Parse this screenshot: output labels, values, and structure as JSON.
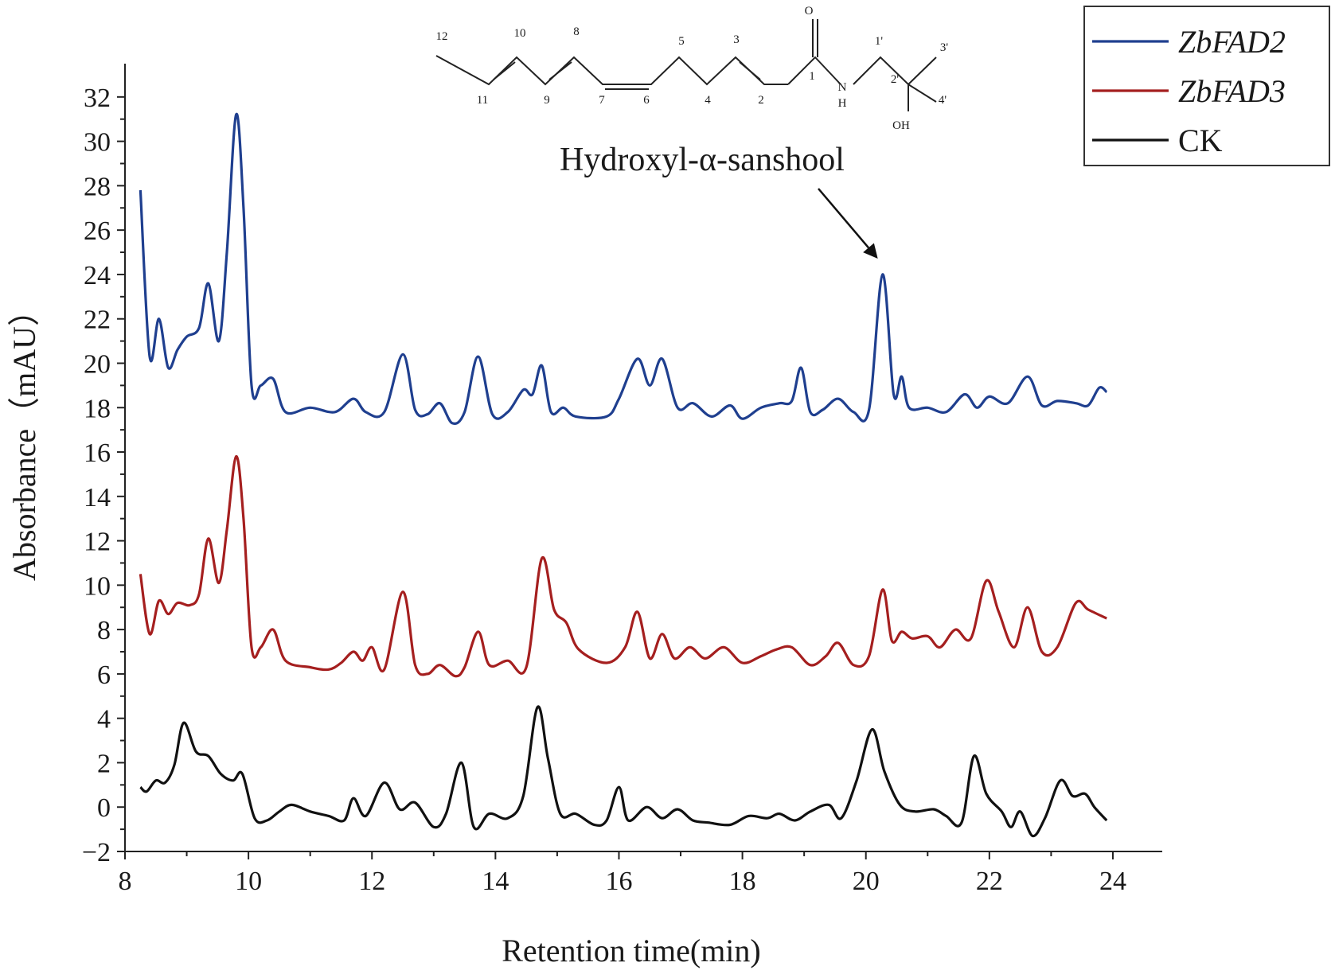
{
  "chart_data": {
    "type": "line",
    "title": "",
    "xlabel": "Retention time(min)",
    "ylabel": "Absorbance（mAU）",
    "xlim": [
      8,
      24.8
    ],
    "ylim": [
      -2,
      33.5
    ],
    "xticks": [
      8,
      10,
      12,
      14,
      16,
      18,
      20,
      22,
      24
    ],
    "yticks": [
      -2,
      0,
      2,
      4,
      6,
      8,
      10,
      12,
      14,
      16,
      18,
      20,
      22,
      24,
      26,
      28,
      30,
      32
    ],
    "grid": false,
    "legend": {
      "placement": "top-right"
    },
    "series": [
      {
        "name": "ZbFAD2",
        "italic": true,
        "color": "#1f3f8f",
        "points": [
          [
            8.25,
            27.8
          ],
          [
            8.4,
            20.3
          ],
          [
            8.55,
            22.0
          ],
          [
            8.7,
            19.8
          ],
          [
            8.85,
            20.6
          ],
          [
            9.0,
            21.2
          ],
          [
            9.2,
            21.6
          ],
          [
            9.35,
            23.6
          ],
          [
            9.52,
            21.0
          ],
          [
            9.65,
            25.0
          ],
          [
            9.8,
            31.2
          ],
          [
            9.92,
            27.0
          ],
          [
            10.05,
            19.0
          ],
          [
            10.2,
            19.0
          ],
          [
            10.4,
            19.3
          ],
          [
            10.6,
            17.8
          ],
          [
            11.0,
            18.0
          ],
          [
            11.4,
            17.8
          ],
          [
            11.7,
            18.4
          ],
          [
            11.9,
            17.8
          ],
          [
            12.2,
            17.8
          ],
          [
            12.5,
            20.4
          ],
          [
            12.7,
            17.9
          ],
          [
            12.9,
            17.7
          ],
          [
            13.1,
            18.2
          ],
          [
            13.3,
            17.3
          ],
          [
            13.5,
            17.8
          ],
          [
            13.72,
            20.3
          ],
          [
            13.95,
            17.7
          ],
          [
            14.2,
            17.8
          ],
          [
            14.45,
            18.8
          ],
          [
            14.6,
            18.6
          ],
          [
            14.75,
            19.9
          ],
          [
            14.9,
            17.8
          ],
          [
            15.1,
            18.0
          ],
          [
            15.3,
            17.6
          ],
          [
            15.8,
            17.6
          ],
          [
            16.0,
            18.4
          ],
          [
            16.3,
            20.2
          ],
          [
            16.5,
            19.0
          ],
          [
            16.7,
            20.2
          ],
          [
            16.95,
            18.0
          ],
          [
            17.2,
            18.2
          ],
          [
            17.5,
            17.6
          ],
          [
            17.8,
            18.1
          ],
          [
            18.0,
            17.5
          ],
          [
            18.3,
            18.0
          ],
          [
            18.6,
            18.2
          ],
          [
            18.8,
            18.3
          ],
          [
            18.95,
            19.8
          ],
          [
            19.1,
            17.8
          ],
          [
            19.3,
            17.9
          ],
          [
            19.55,
            18.4
          ],
          [
            19.8,
            17.8
          ],
          [
            20.05,
            17.9
          ],
          [
            20.27,
            24.0
          ],
          [
            20.45,
            18.6
          ],
          [
            20.58,
            19.4
          ],
          [
            20.7,
            18.0
          ],
          [
            21.0,
            18.0
          ],
          [
            21.3,
            17.8
          ],
          [
            21.6,
            18.6
          ],
          [
            21.8,
            18.0
          ],
          [
            22.0,
            18.5
          ],
          [
            22.3,
            18.2
          ],
          [
            22.62,
            19.4
          ],
          [
            22.85,
            18.1
          ],
          [
            23.1,
            18.3
          ],
          [
            23.4,
            18.2
          ],
          [
            23.6,
            18.1
          ],
          [
            23.78,
            18.9
          ],
          [
            23.9,
            18.7
          ]
        ]
      },
      {
        "name": "ZbFAD3",
        "italic": true,
        "color": "#a51f1f",
        "points": [
          [
            8.25,
            10.5
          ],
          [
            8.4,
            7.8
          ],
          [
            8.55,
            9.3
          ],
          [
            8.7,
            8.7
          ],
          [
            8.85,
            9.2
          ],
          [
            9.05,
            9.1
          ],
          [
            9.2,
            9.6
          ],
          [
            9.35,
            12.1
          ],
          [
            9.52,
            10.1
          ],
          [
            9.65,
            12.5
          ],
          [
            9.8,
            15.8
          ],
          [
            9.92,
            13.0
          ],
          [
            10.05,
            7.2
          ],
          [
            10.2,
            7.2
          ],
          [
            10.4,
            8.0
          ],
          [
            10.6,
            6.6
          ],
          [
            11.0,
            6.3
          ],
          [
            11.3,
            6.2
          ],
          [
            11.5,
            6.5
          ],
          [
            11.7,
            7.0
          ],
          [
            11.85,
            6.6
          ],
          [
            12.0,
            7.2
          ],
          [
            12.2,
            6.2
          ],
          [
            12.5,
            9.7
          ],
          [
            12.7,
            6.4
          ],
          [
            12.9,
            6.0
          ],
          [
            13.1,
            6.4
          ],
          [
            13.35,
            5.9
          ],
          [
            13.5,
            6.3
          ],
          [
            13.72,
            7.9
          ],
          [
            13.9,
            6.4
          ],
          [
            14.2,
            6.6
          ],
          [
            14.5,
            6.3
          ],
          [
            14.75,
            11.2
          ],
          [
            14.95,
            8.9
          ],
          [
            15.15,
            8.3
          ],
          [
            15.35,
            7.1
          ],
          [
            15.8,
            6.5
          ],
          [
            16.1,
            7.2
          ],
          [
            16.3,
            8.8
          ],
          [
            16.5,
            6.7
          ],
          [
            16.7,
            7.8
          ],
          [
            16.9,
            6.7
          ],
          [
            17.15,
            7.2
          ],
          [
            17.4,
            6.7
          ],
          [
            17.7,
            7.2
          ],
          [
            18.0,
            6.5
          ],
          [
            18.3,
            6.8
          ],
          [
            18.55,
            7.1
          ],
          [
            18.8,
            7.2
          ],
          [
            19.1,
            6.4
          ],
          [
            19.35,
            6.8
          ],
          [
            19.55,
            7.4
          ],
          [
            19.8,
            6.4
          ],
          [
            20.05,
            6.8
          ],
          [
            20.27,
            9.8
          ],
          [
            20.42,
            7.5
          ],
          [
            20.58,
            7.9
          ],
          [
            20.75,
            7.6
          ],
          [
            21.0,
            7.7
          ],
          [
            21.2,
            7.2
          ],
          [
            21.45,
            8.0
          ],
          [
            21.7,
            7.6
          ],
          [
            21.95,
            10.2
          ],
          [
            22.15,
            8.8
          ],
          [
            22.4,
            7.2
          ],
          [
            22.62,
            9.0
          ],
          [
            22.85,
            7.0
          ],
          [
            23.1,
            7.2
          ],
          [
            23.4,
            9.2
          ],
          [
            23.6,
            8.9
          ],
          [
            23.9,
            8.5
          ]
        ]
      },
      {
        "name": "CK",
        "italic": false,
        "color": "#111111",
        "points": [
          [
            8.25,
            0.9
          ],
          [
            8.35,
            0.7
          ],
          [
            8.5,
            1.2
          ],
          [
            8.65,
            1.1
          ],
          [
            8.8,
            1.9
          ],
          [
            8.95,
            3.8
          ],
          [
            9.15,
            2.5
          ],
          [
            9.35,
            2.3
          ],
          [
            9.55,
            1.5
          ],
          [
            9.75,
            1.2
          ],
          [
            9.9,
            1.5
          ],
          [
            10.1,
            -0.5
          ],
          [
            10.3,
            -0.6
          ],
          [
            10.5,
            -0.2
          ],
          [
            10.7,
            0.1
          ],
          [
            11.0,
            -0.2
          ],
          [
            11.3,
            -0.4
          ],
          [
            11.55,
            -0.6
          ],
          [
            11.7,
            0.4
          ],
          [
            11.9,
            -0.4
          ],
          [
            12.2,
            1.1
          ],
          [
            12.45,
            -0.1
          ],
          [
            12.7,
            0.2
          ],
          [
            13.0,
            -0.9
          ],
          [
            13.2,
            -0.3
          ],
          [
            13.45,
            2.0
          ],
          [
            13.65,
            -0.9
          ],
          [
            13.9,
            -0.3
          ],
          [
            14.2,
            -0.5
          ],
          [
            14.45,
            0.5
          ],
          [
            14.68,
            4.5
          ],
          [
            14.85,
            2.2
          ],
          [
            15.05,
            -0.3
          ],
          [
            15.3,
            -0.3
          ],
          [
            15.6,
            -0.8
          ],
          [
            15.8,
            -0.6
          ],
          [
            16.0,
            0.9
          ],
          [
            16.15,
            -0.6
          ],
          [
            16.45,
            0.0
          ],
          [
            16.7,
            -0.5
          ],
          [
            16.95,
            -0.1
          ],
          [
            17.2,
            -0.6
          ],
          [
            17.45,
            -0.7
          ],
          [
            17.8,
            -0.8
          ],
          [
            18.1,
            -0.4
          ],
          [
            18.4,
            -0.5
          ],
          [
            18.6,
            -0.3
          ],
          [
            18.85,
            -0.6
          ],
          [
            19.1,
            -0.2
          ],
          [
            19.4,
            0.1
          ],
          [
            19.6,
            -0.5
          ],
          [
            19.85,
            1.2
          ],
          [
            20.1,
            3.5
          ],
          [
            20.3,
            1.6
          ],
          [
            20.55,
            0.1
          ],
          [
            20.8,
            -0.2
          ],
          [
            21.1,
            -0.1
          ],
          [
            21.3,
            -0.4
          ],
          [
            21.55,
            -0.7
          ],
          [
            21.75,
            2.3
          ],
          [
            21.95,
            0.6
          ],
          [
            22.2,
            -0.2
          ],
          [
            22.35,
            -0.9
          ],
          [
            22.5,
            -0.2
          ],
          [
            22.7,
            -1.3
          ],
          [
            22.9,
            -0.5
          ],
          [
            23.15,
            1.2
          ],
          [
            23.35,
            0.5
          ],
          [
            23.55,
            0.6
          ],
          [
            23.7,
            0.0
          ],
          [
            23.9,
            -0.6
          ]
        ]
      }
    ],
    "annotations": [
      {
        "text": "Hydroxyl-α-sanshool",
        "target": [
          20.27,
          24.5
        ]
      }
    ],
    "structure_labels": [
      "12",
      "11",
      "10",
      "9",
      "8",
      "7",
      "6",
      "5",
      "4",
      "3",
      "2",
      "1",
      "O",
      "N",
      "H",
      "1'",
      "2'",
      "3'",
      "4'",
      "OH"
    ]
  }
}
